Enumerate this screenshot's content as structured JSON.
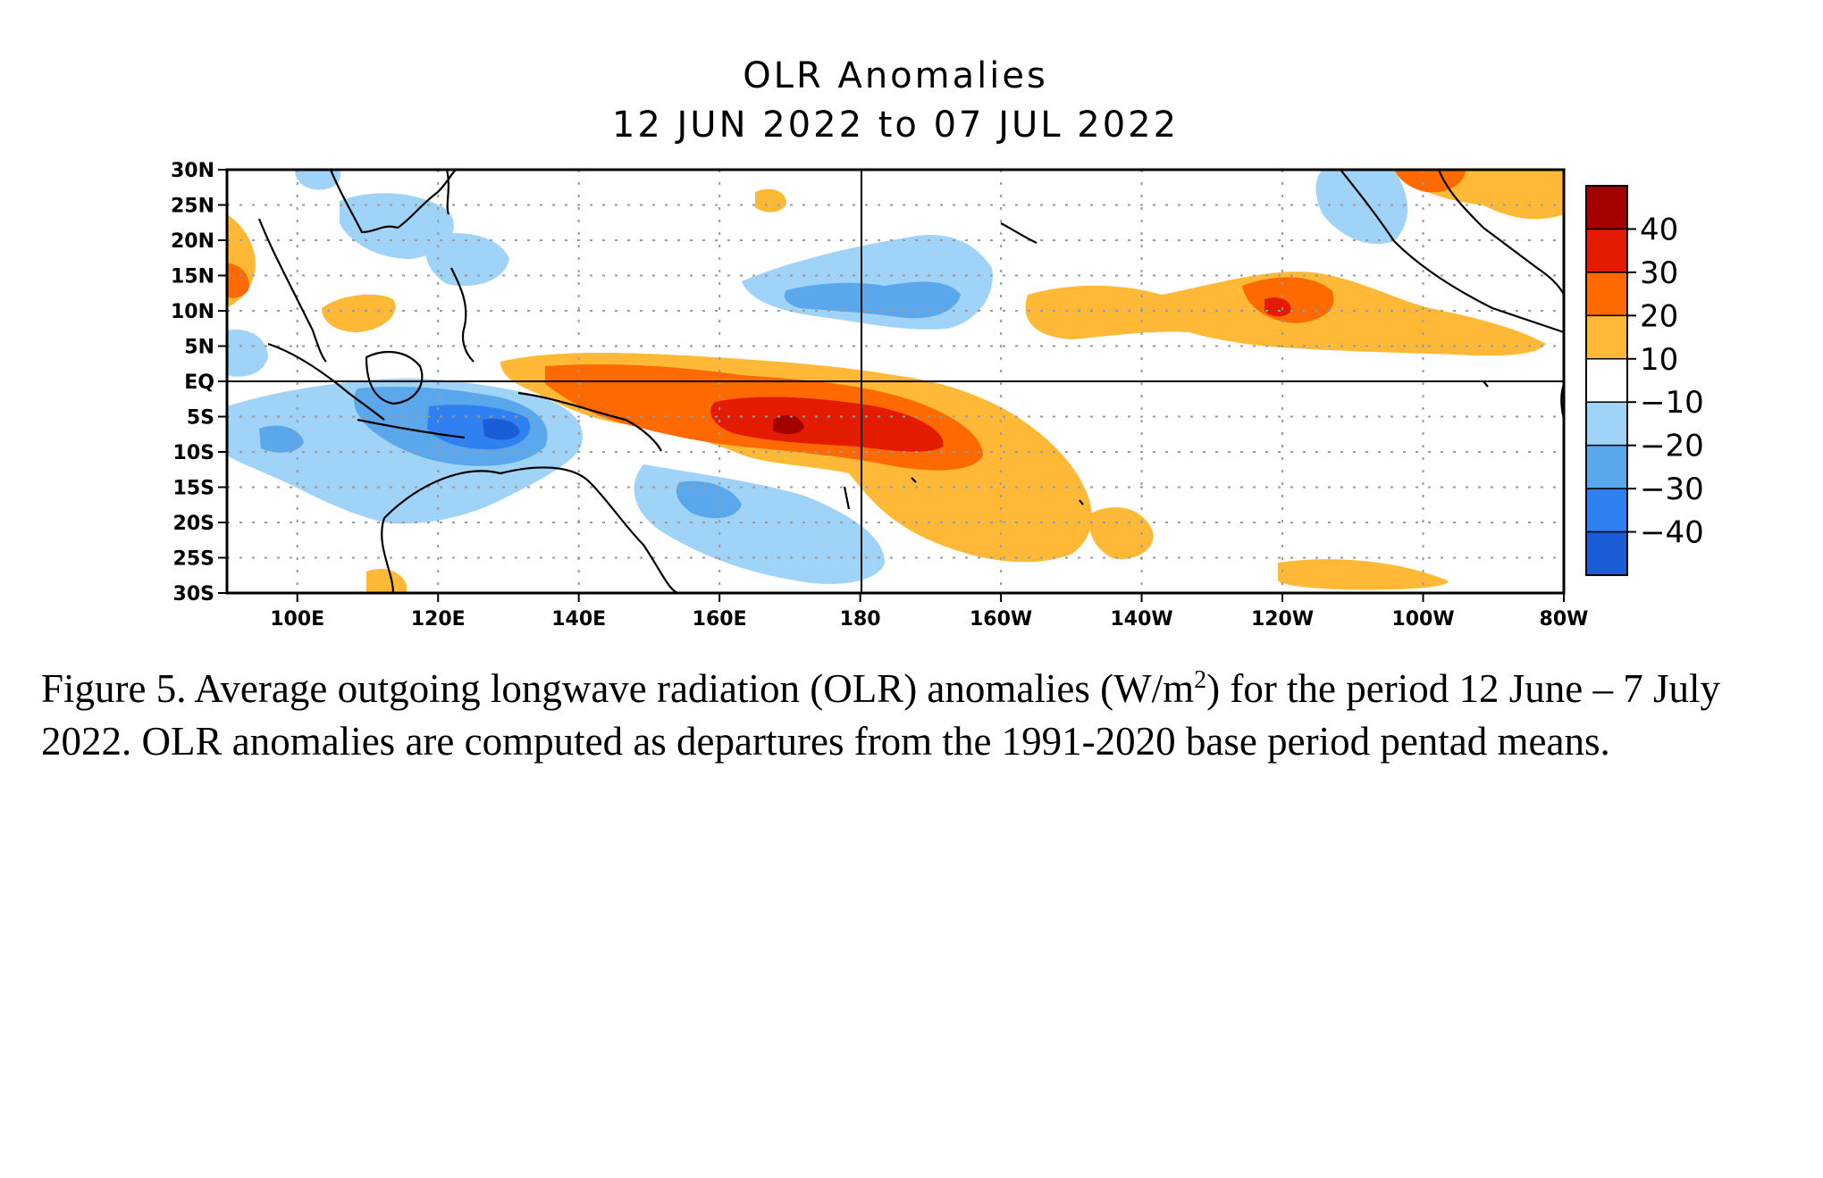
{
  "title": {
    "line1": "OLR Anomalies",
    "line2": "12 JUN 2022 to 07 JUL 2022"
  },
  "map": {
    "lat_labels": [
      "30N",
      "25N",
      "20N",
      "15N",
      "10N",
      "5N",
      "EQ",
      "5S",
      "10S",
      "15S",
      "20S",
      "25S",
      "30S"
    ],
    "lon_labels": [
      "100E",
      "120E",
      "140E",
      "160E",
      "180",
      "160W",
      "140W",
      "120W",
      "100W",
      "80W"
    ],
    "lon_range_deg_east": [
      90,
      280
    ],
    "lat_range_deg": [
      -30,
      30
    ]
  },
  "legend": {
    "labels": [
      "40",
      "30",
      "20",
      "10",
      "−10",
      "−20",
      "−30",
      "−40"
    ],
    "colors": [
      "#a30000",
      "#e31b00",
      "#ff6a00",
      "#ffb937",
      "#ffffff",
      "#9fd3f8",
      "#5aa7ec",
      "#2f80f0",
      "#1b5dd6"
    ]
  },
  "caption": {
    "part1": "Figure 5. Average outgoing longwave radiation (OLR) anomalies (W/m",
    "sup": "2",
    "part2": ") for the period 12 June – 7 July 2022.  OLR anomalies are computed as departures from the 1991-2020 base period pentad means."
  }
}
